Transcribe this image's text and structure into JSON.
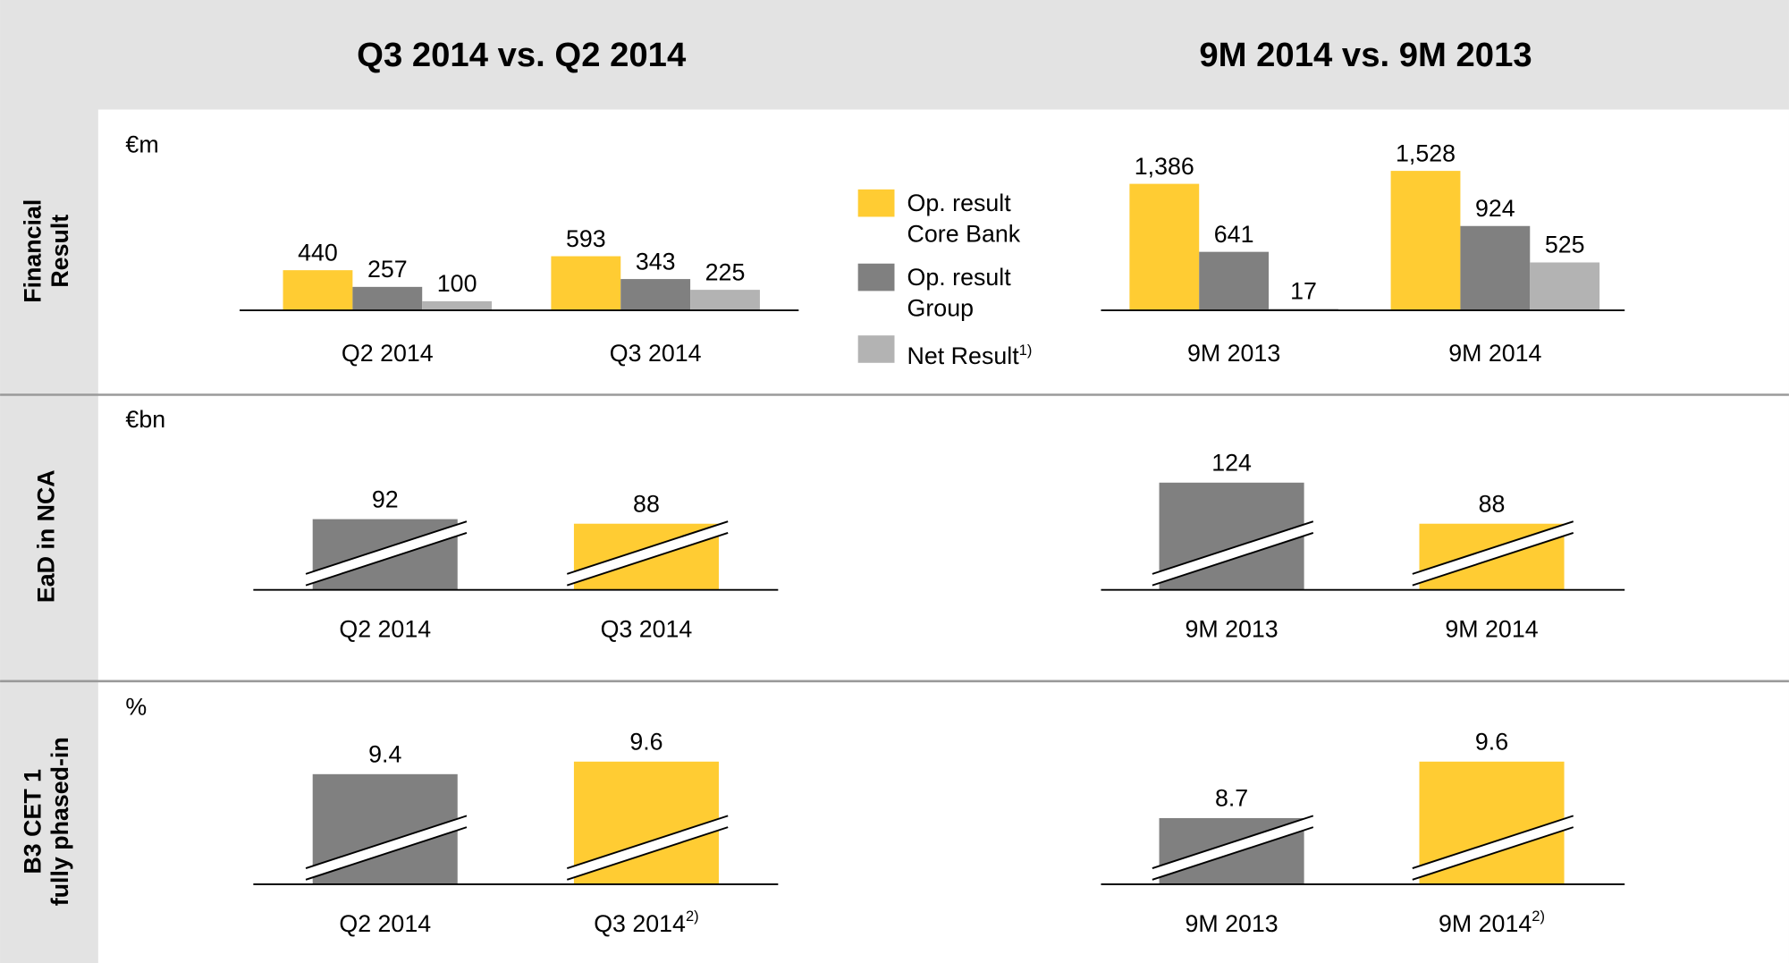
{
  "headers": [
    "Q3 2014 vs. Q2 2014",
    "9M 2014 vs. 9M 2013"
  ],
  "rows": [
    {
      "label_lines": [
        "Financial",
        "Result"
      ],
      "unit": "€m"
    },
    {
      "label_lines": [
        "EaD in NCA"
      ],
      "unit": "€bn"
    },
    {
      "label_lines": [
        "B3 CET 1",
        "fully phased-in"
      ],
      "unit": "%"
    }
  ],
  "chart_data": [
    {
      "type": "bar",
      "categories": [
        "Q2 2014",
        "Q3 2014"
      ],
      "series": [
        {
          "name": "Op. result Core Bank",
          "color": "#ffcc33",
          "values": [
            440,
            593
          ]
        },
        {
          "name": "Op. result Group",
          "color": "#808080",
          "values": [
            257,
            343
          ]
        },
        {
          "name": "Net Result",
          "note": "1)",
          "color": "#b3b3b3",
          "values": [
            100,
            225
          ]
        }
      ]
    },
    {
      "type": "bar",
      "categories": [
        "9M 2013",
        "9M 2014"
      ],
      "series": [
        {
          "color": "#ffcc33",
          "values": [
            1386,
            1528
          ],
          "value_labels": [
            "1,386",
            "1,528"
          ]
        },
        {
          "color": "#808080",
          "values": [
            641,
            924
          ]
        },
        {
          "color": "#b3b3b3",
          "values": [
            17,
            525
          ]
        }
      ]
    },
    {
      "type": "broken_bar",
      "categories": [
        "Q2 2014",
        "Q3 2014"
      ],
      "values": [
        92,
        88
      ],
      "colors": [
        "#808080",
        "#ffcc33"
      ]
    },
    {
      "type": "broken_bar",
      "categories": [
        "9M 2013",
        "9M 2014"
      ],
      "values": [
        124,
        88
      ],
      "colors": [
        "#808080",
        "#ffcc33"
      ]
    },
    {
      "type": "broken_bar",
      "categories": [
        "Q2 2014",
        "Q3 2014"
      ],
      "category_notes": [
        null,
        "2)"
      ],
      "values": [
        9.4,
        9.6
      ],
      "colors": [
        "#808080",
        "#ffcc33"
      ]
    },
    {
      "type": "broken_bar",
      "categories": [
        "9M 2013",
        "9M 2014"
      ],
      "category_notes": [
        null,
        "2)"
      ],
      "values": [
        8.7,
        9.6
      ],
      "colors": [
        "#808080",
        "#ffcc33"
      ]
    }
  ]
}
